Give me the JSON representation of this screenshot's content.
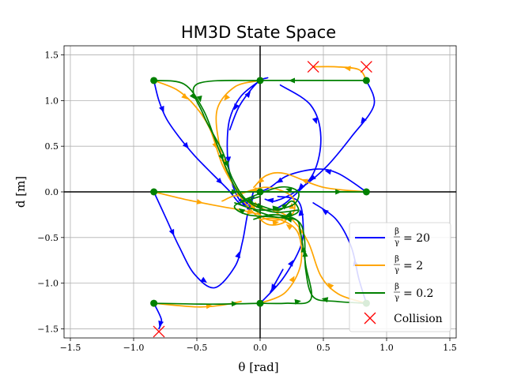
{
  "chart_data": {
    "type": "line",
    "title": "HM3D State Space",
    "xlabel": "θ [rad]",
    "ylabel": "d [m]",
    "xlim": [
      -1.55,
      1.55
    ],
    "ylim": [
      -1.6,
      1.6
    ],
    "x_ticks": [
      -1.5,
      -1.0,
      -0.5,
      0.0,
      0.5,
      1.0,
      1.5
    ],
    "x_tick_labels": [
      "−1.5",
      "−1.0",
      "−0.5",
      "0.0",
      "0.5",
      "1.0",
      "1.5"
    ],
    "y_ticks": [
      -1.5,
      -1.0,
      -0.5,
      0.0,
      0.5,
      1.0,
      1.5
    ],
    "y_tick_labels": [
      "−1.5",
      "−1.0",
      "−0.5",
      "0.0",
      "0.5",
      "1.0",
      "1.5"
    ],
    "grid": true,
    "zero_axes": true,
    "legend_position": "lower-right",
    "colors": {
      "blue": "#0000ff",
      "orange": "#ffa500",
      "green": "#008000",
      "collision": "#ff0000"
    },
    "series": [
      {
        "name": "β/γ = 20",
        "ratio": "20",
        "color": "#0000ff",
        "trajectories": [
          [
            [
              -0.84,
              1.22
            ],
            [
              -0.8,
              1.0
            ],
            [
              -0.74,
              0.8
            ],
            [
              -0.64,
              0.6
            ],
            [
              -0.52,
              0.4
            ],
            [
              -0.38,
              0.2
            ],
            [
              -0.25,
              0.02
            ],
            [
              -0.15,
              -0.14
            ],
            [
              -0.08,
              -0.1
            ],
            [
              -0.05,
              0.02
            ]
          ],
          [
            [
              0.0,
              1.22
            ],
            [
              -0.15,
              1.05
            ],
            [
              -0.24,
              0.8
            ],
            [
              -0.26,
              0.5
            ],
            [
              -0.24,
              0.2
            ],
            [
              -0.18,
              -0.05
            ],
            [
              -0.1,
              -0.15
            ],
            [
              -0.05,
              -0.05
            ]
          ],
          [
            [
              0.84,
              1.22
            ],
            [
              0.9,
              0.95
            ],
            [
              0.72,
              0.6
            ],
            [
              0.52,
              0.27
            ],
            [
              0.3,
              0.02
            ],
            [
              0.12,
              -0.1
            ],
            [
              0.04,
              -0.08
            ]
          ],
          [
            [
              -0.84,
              0.0
            ],
            [
              -0.74,
              -0.3
            ],
            [
              -0.64,
              -0.6
            ],
            [
              -0.52,
              -0.9
            ],
            [
              -0.36,
              -1.05
            ],
            [
              -0.2,
              -0.82
            ],
            [
              -0.14,
              -0.55
            ],
            [
              -0.1,
              -0.25
            ],
            [
              -0.06,
              -0.08
            ]
          ],
          [
            [
              0.84,
              0.0
            ],
            [
              0.62,
              0.2
            ],
            [
              0.45,
              0.25
            ],
            [
              0.22,
              0.18
            ],
            [
              0.08,
              0.05
            ],
            [
              0.0,
              0.0
            ]
          ],
          [
            [
              -0.84,
              -1.22
            ],
            [
              -0.78,
              -1.4
            ],
            [
              -0.8,
              -1.5
            ]
          ],
          [
            [
              0.0,
              -1.22
            ],
            [
              0.18,
              -0.95
            ],
            [
              0.32,
              -0.6
            ],
            [
              0.34,
              -0.35
            ],
            [
              0.3,
              -0.1
            ],
            [
              0.14,
              -0.05
            ]
          ],
          [
            [
              0.84,
              -1.22
            ],
            [
              0.78,
              -0.95
            ],
            [
              0.72,
              -0.6
            ],
            [
              0.6,
              -0.3
            ],
            [
              0.42,
              -0.12
            ]
          ],
          [
            [
              0.16,
              1.17
            ],
            [
              0.4,
              0.95
            ],
            [
              0.48,
              0.6
            ],
            [
              0.42,
              0.2
            ],
            [
              0.22,
              -0.1
            ],
            [
              0.1,
              -0.2
            ]
          ],
          [
            [
              -0.24,
              0.68
            ],
            [
              -0.16,
              0.95
            ],
            [
              -0.02,
              1.2
            ],
            [
              0.06,
              1.25
            ]
          ],
          [
            [
              0.18,
              -0.85
            ],
            [
              0.12,
              -1.0
            ],
            [
              0.08,
              -1.1
            ]
          ]
        ]
      },
      {
        "name": "β/γ = 2",
        "ratio": "2",
        "color": "#ffa500",
        "trajectories": [
          [
            [
              0.84,
              1.22
            ],
            [
              0.78,
              1.34
            ],
            [
              0.6,
              1.37
            ],
            [
              0.42,
              1.37
            ]
          ],
          [
            [
              -0.84,
              1.22
            ],
            [
              -0.66,
              1.12
            ],
            [
              -0.52,
              0.95
            ],
            [
              -0.4,
              0.7
            ],
            [
              -0.3,
              0.3
            ],
            [
              -0.2,
              0.05
            ],
            [
              -0.12,
              -0.12
            ],
            [
              0.05,
              -0.35
            ],
            [
              0.2,
              -0.32
            ],
            [
              0.1,
              -0.2
            ]
          ],
          [
            [
              0.0,
              1.22
            ],
            [
              -0.2,
              1.15
            ],
            [
              -0.34,
              0.9
            ],
            [
              -0.32,
              0.5
            ],
            [
              -0.24,
              0.15
            ],
            [
              -0.1,
              -0.1
            ],
            [
              0.05,
              -0.2
            ]
          ],
          [
            [
              -0.84,
              0.0
            ],
            [
              -0.6,
              -0.08
            ],
            [
              -0.35,
              -0.15
            ],
            [
              -0.15,
              -0.2
            ],
            [
              0.0,
              -0.25
            ]
          ],
          [
            [
              0.84,
              0.0
            ],
            [
              0.5,
              0.05
            ],
            [
              0.2,
              0.2
            ],
            [
              0.05,
              0.18
            ],
            [
              -0.05,
              0.05
            ]
          ],
          [
            [
              -0.84,
              -1.22
            ],
            [
              -0.5,
              -1.26
            ],
            [
              -0.3,
              -1.24
            ],
            [
              -0.15,
              -1.2
            ]
          ],
          [
            [
              0.0,
              -1.22
            ],
            [
              0.2,
              -1.1
            ],
            [
              0.32,
              -0.8
            ],
            [
              0.3,
              -0.45
            ],
            [
              0.15,
              -0.3
            ],
            [
              0.0,
              -0.3
            ]
          ],
          [
            [
              0.84,
              -1.22
            ],
            [
              0.62,
              -1.12
            ],
            [
              0.48,
              -0.92
            ],
            [
              0.38,
              -0.55
            ],
            [
              0.25,
              -0.3
            ],
            [
              0.12,
              -0.2
            ]
          ],
          [
            [
              -0.3,
              -0.1
            ],
            [
              -0.15,
              -0.05
            ],
            [
              0.05,
              -0.3
            ],
            [
              0.25,
              -0.25
            ],
            [
              0.25,
              -0.05
            ],
            [
              0.05,
              0.05
            ],
            [
              -0.15,
              -0.02
            ]
          ]
        ]
      },
      {
        "name": "β/γ = 0.2",
        "ratio": "0.2",
        "color": "#008000",
        "trajectories": [
          [
            [
              -0.84,
              1.22
            ],
            [
              -0.6,
              1.18
            ],
            [
              -0.45,
              0.9
            ],
            [
              -0.35,
              0.55
            ],
            [
              -0.25,
              0.2
            ],
            [
              -0.15,
              -0.05
            ],
            [
              0.0,
              -0.15
            ],
            [
              0.15,
              -0.2
            ],
            [
              0.25,
              -0.1
            ],
            [
              0.3,
              -0.22
            ],
            [
              0.15,
              -0.28
            ],
            [
              -0.05,
              -0.2
            ]
          ],
          [
            [
              0.0,
              1.22
            ],
            [
              -0.5,
              1.18
            ],
            [
              -0.45,
              0.85
            ],
            [
              -0.3,
              0.45
            ],
            [
              -0.22,
              0.15
            ],
            [
              -0.1,
              -0.1
            ],
            [
              0.1,
              -0.22
            ],
            [
              0.3,
              -0.2
            ]
          ],
          [
            [
              0.84,
              1.22
            ],
            [
              0.5,
              1.22
            ],
            [
              0.0,
              1.22
            ]
          ],
          [
            [
              -0.84,
              0.0
            ],
            [
              -0.4,
              0.0
            ],
            [
              0.0,
              0.0
            ],
            [
              0.4,
              0.0
            ],
            [
              0.84,
              0.0
            ]
          ],
          [
            [
              -0.84,
              -1.22
            ],
            [
              -0.4,
              -1.23
            ],
            [
              0.0,
              -1.22
            ]
          ],
          [
            [
              0.0,
              -1.22
            ],
            [
              0.2,
              -1.22
            ],
            [
              0.4,
              -1.18
            ],
            [
              0.36,
              -0.8
            ],
            [
              0.32,
              -0.45
            ],
            [
              0.28,
              -0.3
            ],
            [
              0.1,
              -0.25
            ],
            [
              -0.05,
              -0.3
            ]
          ],
          [
            [
              0.84,
              -1.22
            ],
            [
              0.6,
              -1.2
            ],
            [
              0.42,
              -1.15
            ],
            [
              0.36,
              -0.85
            ],
            [
              0.35,
              -0.5
            ],
            [
              0.3,
              -0.32
            ],
            [
              0.15,
              -0.28
            ],
            [
              -0.1,
              -0.25
            ],
            [
              -0.2,
              -0.15
            ],
            [
              0.0,
              -0.05
            ]
          ],
          [
            [
              -0.2,
              -0.12
            ],
            [
              0.0,
              -0.2
            ],
            [
              0.25,
              -0.15
            ],
            [
              0.3,
              0.0
            ],
            [
              0.15,
              0.05
            ],
            [
              -0.15,
              -0.1
            ]
          ]
        ]
      }
    ],
    "start_points": [
      [
        -0.84,
        1.22
      ],
      [
        0.0,
        1.22
      ],
      [
        0.84,
        1.22
      ],
      [
        -0.84,
        0.0
      ],
      [
        0.0,
        0.0
      ],
      [
        0.84,
        0.0
      ],
      [
        -0.84,
        -1.22
      ],
      [
        0.0,
        -1.22
      ],
      [
        0.84,
        -1.22
      ]
    ],
    "collisions": {
      "name": "Collision",
      "points": [
        [
          0.42,
          1.37
        ],
        [
          0.84,
          1.37
        ],
        [
          -0.8,
          -1.53
        ]
      ]
    }
  }
}
